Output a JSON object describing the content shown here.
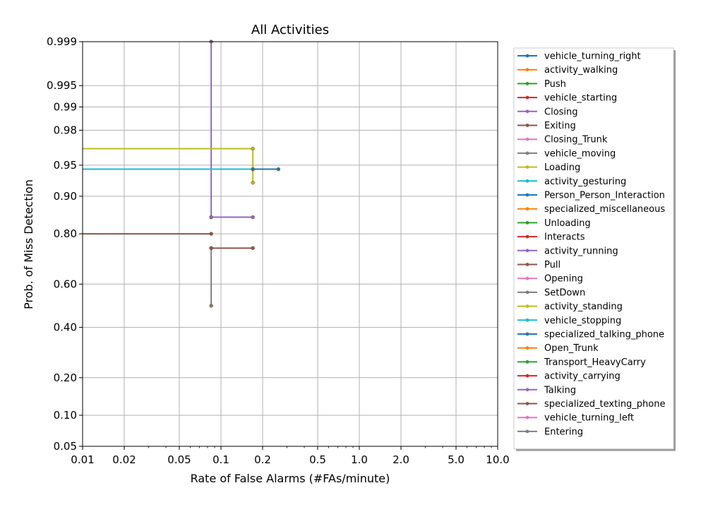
{
  "chart_data": {
    "type": "line",
    "title": "All Activities",
    "xlabel": "Rate of False Alarms (#FAs/minute)",
    "ylabel": "Prob. of Miss Detection",
    "x_scale": "log",
    "y_scale": "normal-deviate",
    "xlim": [
      0.01,
      10.0
    ],
    "ylim": [
      0.05,
      0.999
    ],
    "x_ticks": [
      0.01,
      0.02,
      0.05,
      0.1,
      0.2,
      0.5,
      1.0,
      2.0,
      5.0,
      10.0
    ],
    "x_tick_labels": [
      "0.01",
      "0.02",
      "0.05",
      "0.1",
      "0.2",
      "0.5",
      "1.0",
      "2.0",
      "5.0",
      "10.0"
    ],
    "y_ticks": [
      0.05,
      0.1,
      0.2,
      0.4,
      0.6,
      0.8,
      0.9,
      0.95,
      0.98,
      0.99,
      0.995,
      0.999
    ],
    "y_tick_labels": [
      "0.05",
      "0.10",
      "0.20",
      "0.40",
      "0.60",
      "0.80",
      "0.90",
      "0.95",
      "0.98",
      "0.99",
      "0.995",
      "0.999"
    ],
    "grid": true,
    "legend_position": "right",
    "series": [
      {
        "name": "vehicle_turning_right",
        "color": "#1f77b4",
        "x": [],
        "y": []
      },
      {
        "name": "activity_walking",
        "color": "#ff7f0e",
        "x": [],
        "y": []
      },
      {
        "name": "Push",
        "color": "#2ca02c",
        "x": [],
        "y": []
      },
      {
        "name": "vehicle_starting",
        "color": "#d62728",
        "x": [],
        "y": []
      },
      {
        "name": "Closing",
        "color": "#9467bd",
        "x": [
          0.085,
          0.085
        ],
        "y": [
          0.999,
          0.85
        ]
      },
      {
        "name": "Exiting",
        "color": "#8c564b",
        "x": [
          0.01,
          0.085
        ],
        "y": [
          0.8,
          0.8
        ]
      },
      {
        "name": "Closing_Trunk",
        "color": "#e377c2",
        "x": [],
        "y": []
      },
      {
        "name": "vehicle_moving",
        "color": "#7f7f7f",
        "x": [
          0.085,
          0.085
        ],
        "y": [
          0.75,
          0.5
        ]
      },
      {
        "name": "Loading",
        "color": "#bcbd22",
        "x": [
          0.01,
          0.17,
          0.17
        ],
        "y": [
          0.967,
          0.967,
          0.925
        ]
      },
      {
        "name": "activity_gesturing",
        "color": "#17becf",
        "x": [
          0.01,
          0.17
        ],
        "y": [
          0.945,
          0.945
        ]
      },
      {
        "name": "Person_Person_Interaction",
        "color": "#1f77b4",
        "x": [
          0.17,
          0.26
        ],
        "y": [
          0.945,
          0.945
        ]
      },
      {
        "name": "specialized_miscellaneous",
        "color": "#ff7f0e",
        "x": [],
        "y": []
      },
      {
        "name": "Unloading",
        "color": "#2ca02c",
        "x": [],
        "y": []
      },
      {
        "name": "Interacts",
        "color": "#d62728",
        "x": [],
        "y": []
      },
      {
        "name": "activity_running",
        "color": "#9467bd",
        "x": [
          0.085,
          0.17
        ],
        "y": [
          0.85,
          0.85
        ]
      },
      {
        "name": "Pull",
        "color": "#8c564b",
        "x": [
          0.085,
          0.17
        ],
        "y": [
          0.75,
          0.75
        ]
      },
      {
        "name": "Opening",
        "color": "#e377c2",
        "x": [],
        "y": []
      },
      {
        "name": "SetDown",
        "color": "#7f7f7f",
        "x": [],
        "y": []
      },
      {
        "name": "activity_standing",
        "color": "#bcbd22",
        "x": [],
        "y": []
      },
      {
        "name": "vehicle_stopping",
        "color": "#17becf",
        "x": [],
        "y": []
      },
      {
        "name": "specialized_talking_phone",
        "color": "#1f77b4",
        "x": [],
        "y": []
      },
      {
        "name": "Open_Trunk",
        "color": "#ff7f0e",
        "x": [],
        "y": []
      },
      {
        "name": "Transport_HeavyCarry",
        "color": "#2ca02c",
        "x": [],
        "y": []
      },
      {
        "name": "activity_carrying",
        "color": "#d62728",
        "x": [],
        "y": []
      },
      {
        "name": "Talking",
        "color": "#9467bd",
        "x": [],
        "y": []
      },
      {
        "name": "specialized_texting_phone",
        "color": "#8c564b",
        "x": [],
        "y": []
      },
      {
        "name": "vehicle_turning_left",
        "color": "#e377c2",
        "x": [],
        "y": []
      },
      {
        "name": "Entering",
        "color": "#7f7f7f",
        "x": [],
        "y": []
      }
    ]
  }
}
